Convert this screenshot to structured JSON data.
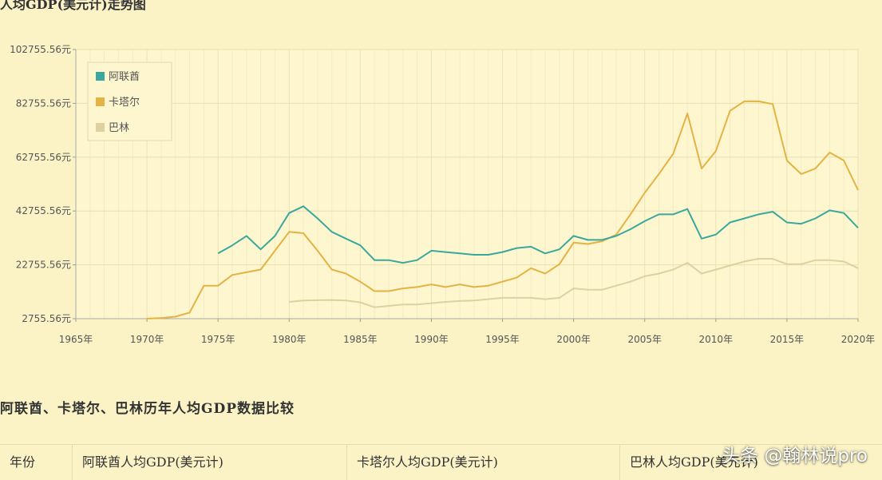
{
  "chart_data": {
    "type": "line",
    "title": "人均GDP(美元计)走势图",
    "x": [
      1965,
      1966,
      1967,
      1968,
      1969,
      1970,
      1971,
      1972,
      1973,
      1974,
      1975,
      1976,
      1977,
      1978,
      1979,
      1980,
      1981,
      1982,
      1983,
      1984,
      1985,
      1986,
      1987,
      1988,
      1989,
      1990,
      1991,
      1992,
      1993,
      1994,
      1995,
      1996,
      1997,
      1998,
      1999,
      2000,
      2001,
      2002,
      2003,
      2004,
      2005,
      2006,
      2007,
      2008,
      2009,
      2010,
      2011,
      2012,
      2013,
      2014,
      2015,
      2016,
      2017,
      2018,
      2019,
      2020
    ],
    "x_tick_labels": [
      "1965年",
      "1970年",
      "1975年",
      "1980年",
      "1985年",
      "1990年",
      "1995年",
      "2000年",
      "2005年",
      "2010年",
      "2015年",
      "2020年"
    ],
    "x_tick_values": [
      1965,
      1970,
      1975,
      1980,
      1985,
      1990,
      1995,
      2000,
      2005,
      2010,
      2015,
      2020
    ],
    "y_tick_labels": [
      "2755.56元",
      "22755.56元",
      "42755.56元",
      "62755.56元",
      "82755.56元",
      "102755.56元"
    ],
    "y_tick_values": [
      2755.56,
      22755.56,
      42755.56,
      62755.56,
      82755.56,
      102755.56
    ],
    "ylim": [
      2755.56,
      102755.56
    ],
    "xlim": [
      1965,
      2020
    ],
    "grid": true,
    "legend_position": "top-left",
    "series": [
      {
        "name": "阿联酋",
        "color": "#3aa89c",
        "values": [
          null,
          null,
          null,
          null,
          null,
          null,
          null,
          null,
          null,
          null,
          27000,
          30000,
          33500,
          28500,
          33500,
          42000,
          44500,
          40000,
          35000,
          32500,
          30000,
          24500,
          24500,
          23500,
          24500,
          28000,
          27500,
          27000,
          26500,
          26500,
          27500,
          29000,
          29500,
          27000,
          28500,
          33500,
          32000,
          32000,
          33500,
          36000,
          39000,
          41500,
          41500,
          43500,
          32500,
          34000,
          38500,
          40000,
          41500,
          42500,
          38500,
          38000,
          40000,
          43000,
          42000,
          36500
        ]
      },
      {
        "name": "卡塔尔",
        "color": "#e3b343",
        "values": [
          null,
          null,
          null,
          null,
          null,
          2800,
          3000,
          3500,
          5000,
          15000,
          15000,
          19000,
          20000,
          21000,
          28000,
          35000,
          34500,
          28000,
          21000,
          19500,
          16500,
          13000,
          13000,
          14000,
          14500,
          15500,
          14500,
          15500,
          14500,
          15000,
          16500,
          18000,
          21500,
          19500,
          23000,
          31000,
          30500,
          31500,
          34000,
          41500,
          49500,
          56500,
          64000,
          79000,
          58500,
          65000,
          80000,
          83500,
          83500,
          82500,
          61500,
          56500,
          58500,
          64500,
          61500,
          50500
        ]
      },
      {
        "name": "巴林",
        "color": "#ddd0a2",
        "values": [
          null,
          null,
          null,
          null,
          null,
          null,
          null,
          null,
          null,
          null,
          null,
          null,
          null,
          null,
          null,
          9000,
          9500,
          9600,
          9700,
          9500,
          8800,
          7000,
          7500,
          8000,
          8000,
          8500,
          9000,
          9300,
          9500,
          10000,
          10500,
          10500,
          10500,
          10000,
          10500,
          14000,
          13500,
          13500,
          15000,
          16500,
          18500,
          19500,
          21000,
          23500,
          19500,
          21000,
          22500,
          24000,
          25000,
          25000,
          23000,
          23000,
          24500,
          24500,
          24000,
          21500
        ]
      }
    ]
  },
  "table": {
    "section_title": "阿联酋、卡塔尔、巴林历年人均GDP数据比较",
    "headers": [
      "年份",
      "阿联酋人均GDP(美元计)",
      "卡塔尔人均GDP(美元计)",
      "巴林人均GDP(美元计)"
    ]
  },
  "watermark": "头条 @翰林说pro"
}
